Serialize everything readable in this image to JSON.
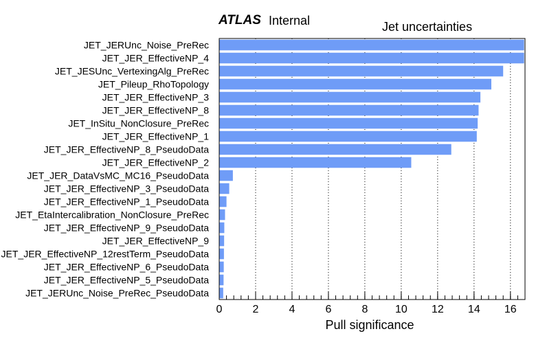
{
  "header": {
    "experiment": "ATLAS",
    "status": "Internal"
  },
  "chart_data": {
    "type": "bar",
    "orientation": "horizontal",
    "title": "Jet uncertainties",
    "xlabel": "Pull significance",
    "ylabel": "",
    "xlim": [
      0,
      16.8
    ],
    "xticks": [
      0,
      2,
      4,
      6,
      8,
      10,
      12,
      14,
      16
    ],
    "grid": "vertical-dotted",
    "bar_color": "#6f9cf7",
    "categories": [
      "JET_JERUnc_Noise_PreRec",
      "JET_JER_EffectiveNP_4",
      "JET_JESUnc_VertexingAlg_PreRec",
      "JET_Pileup_RhoTopology",
      "JET_JER_EffectiveNP_3",
      "JET_JER_EffectiveNP_8",
      "JET_InSitu_NonClosure_PreRec",
      "JET_JER_EffectiveNP_1",
      "JET_JER_EffectiveNP_8_PseudoData",
      "JET_JER_EffectiveNP_2",
      "JET_JER_DataVsMC_MC16_PseudoData",
      "JET_JER_EffectiveNP_3_PseudoData",
      "JET_JER_EffectiveNP_1_PseudoData",
      "JET_EtaIntercalibration_NonClosure_PreRec",
      "JET_JER_EffectiveNP_9_PseudoData",
      "JET_JER_EffectiveNP_9",
      "JET_JER_EffectiveNP_12restTerm_PseudoData",
      "JET_JER_EffectiveNP_6_PseudoData",
      "JET_JER_EffectiveNP_5_PseudoData",
      "JET_JERUnc_Noise_PreRec_PseudoData"
    ],
    "values": [
      16.75,
      16.75,
      15.6,
      14.95,
      14.35,
      14.25,
      14.2,
      14.15,
      12.75,
      10.55,
      0.75,
      0.55,
      0.4,
      0.32,
      0.28,
      0.27,
      0.26,
      0.25,
      0.24,
      0.22
    ]
  }
}
